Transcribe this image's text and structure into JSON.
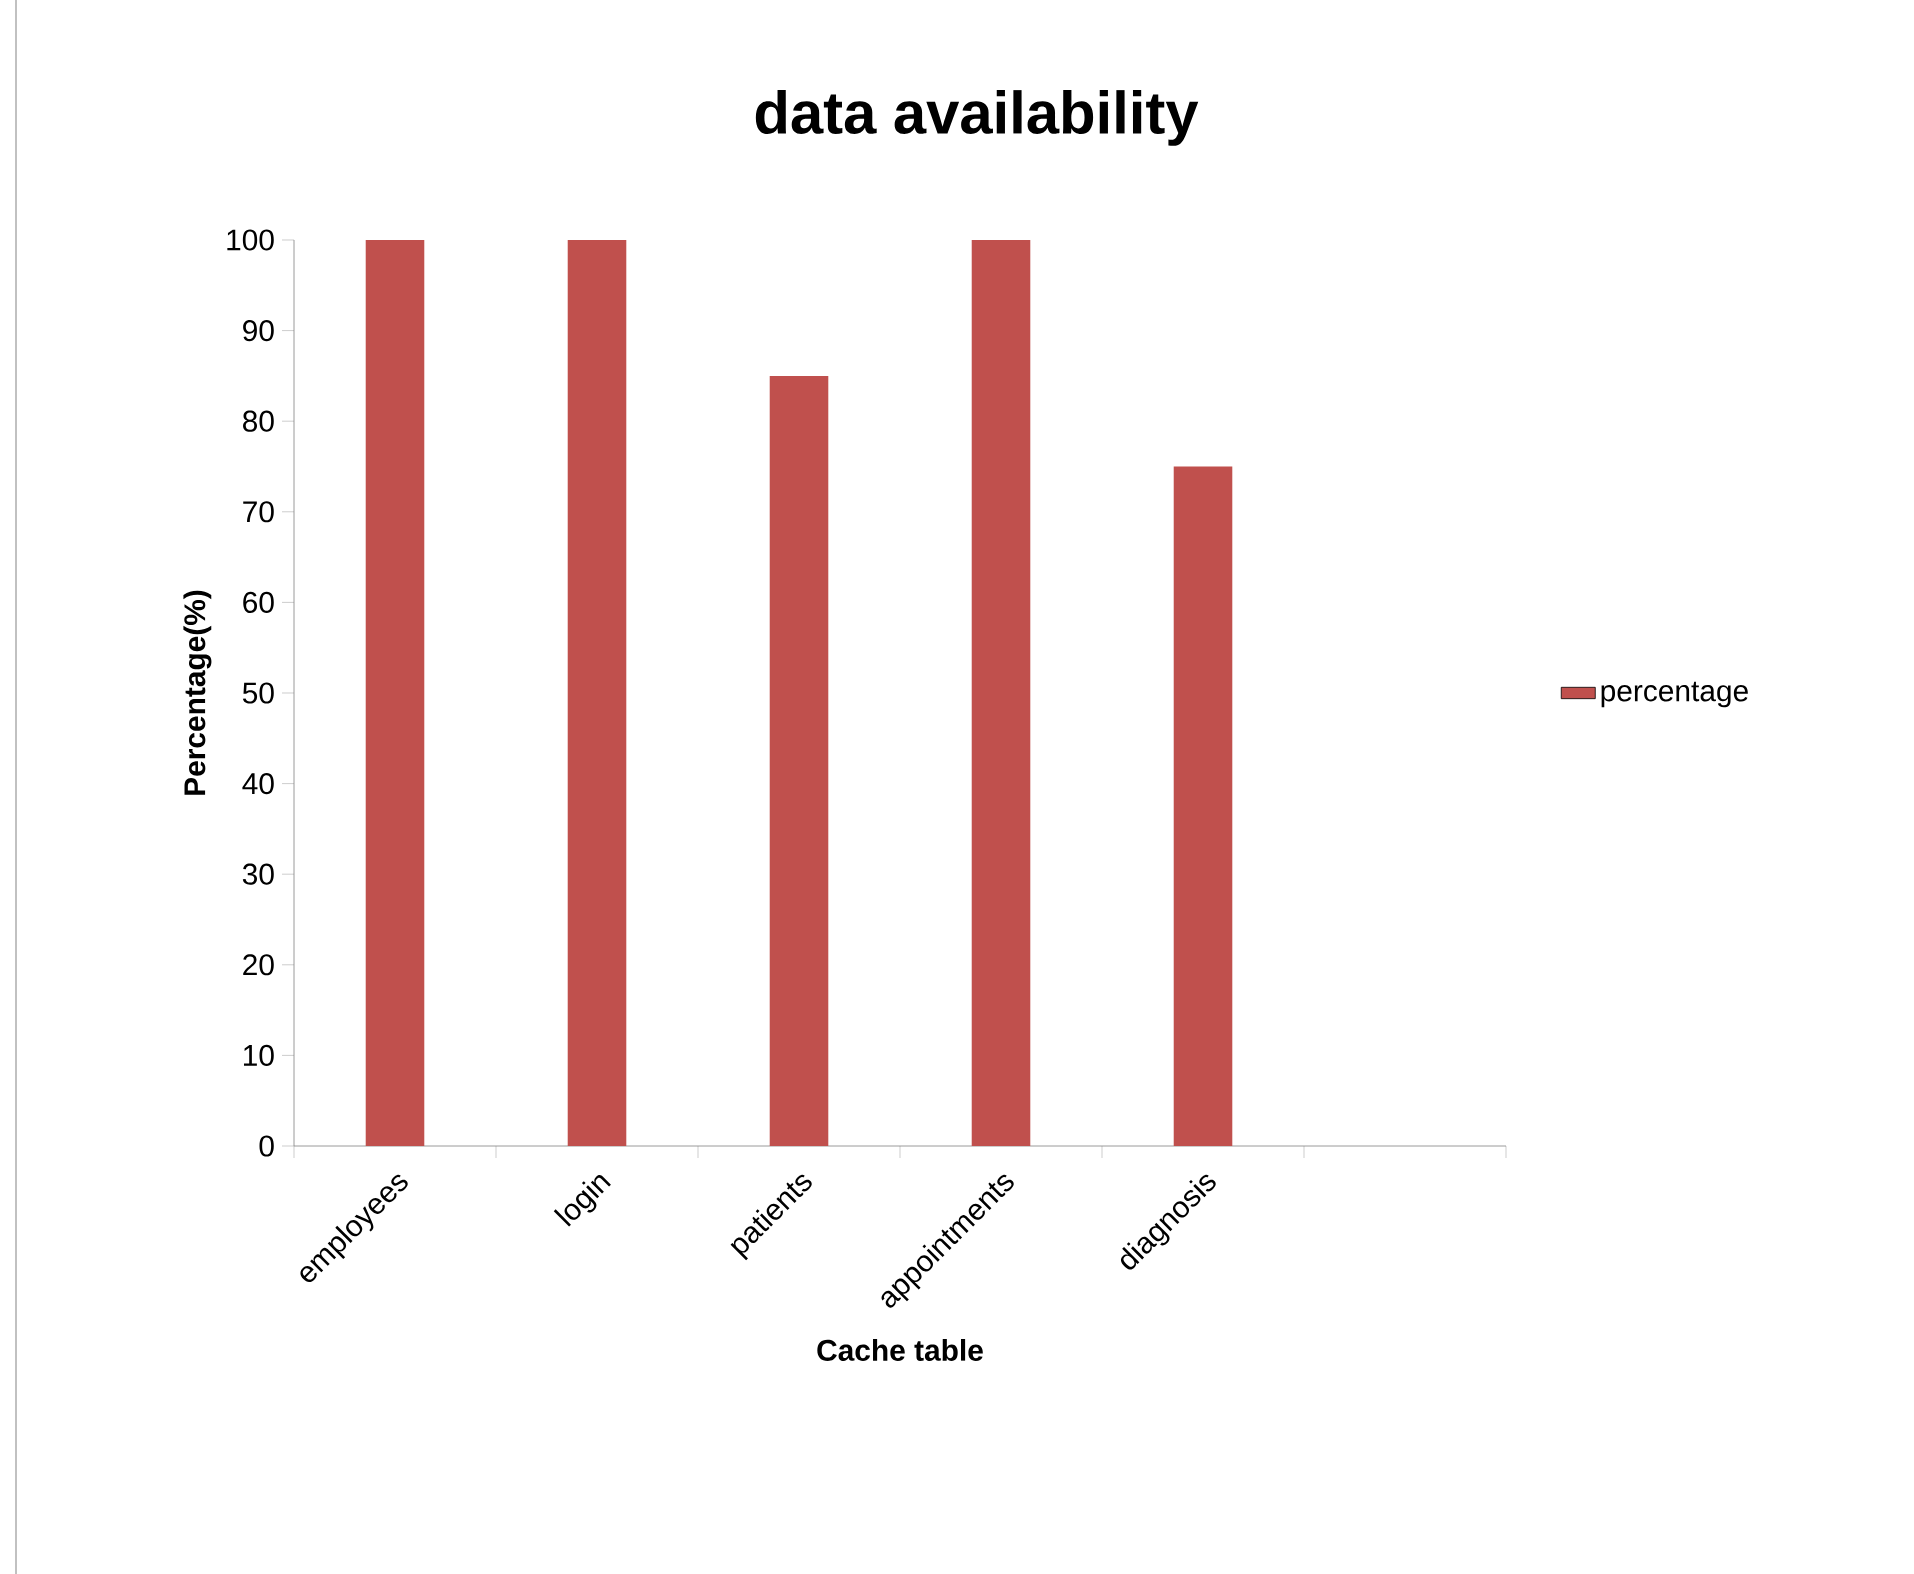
{
  "chart_data": {
    "type": "bar",
    "title": "data availability",
    "xlabel": "Cache table",
    "ylabel": "Percentage(%)",
    "categories": [
      "employees",
      "login",
      "patients",
      "appointments",
      "diagnosis",
      null
    ],
    "series": [
      {
        "name": "percentage",
        "color": "#c0504d",
        "values": [
          100,
          100,
          85,
          100,
          75,
          null
        ]
      }
    ],
    "ylim": [
      0,
      100
    ],
    "yticks": [
      0,
      10,
      20,
      30,
      40,
      50,
      60,
      70,
      80,
      90,
      100
    ],
    "grid": false,
    "legend": "right"
  }
}
